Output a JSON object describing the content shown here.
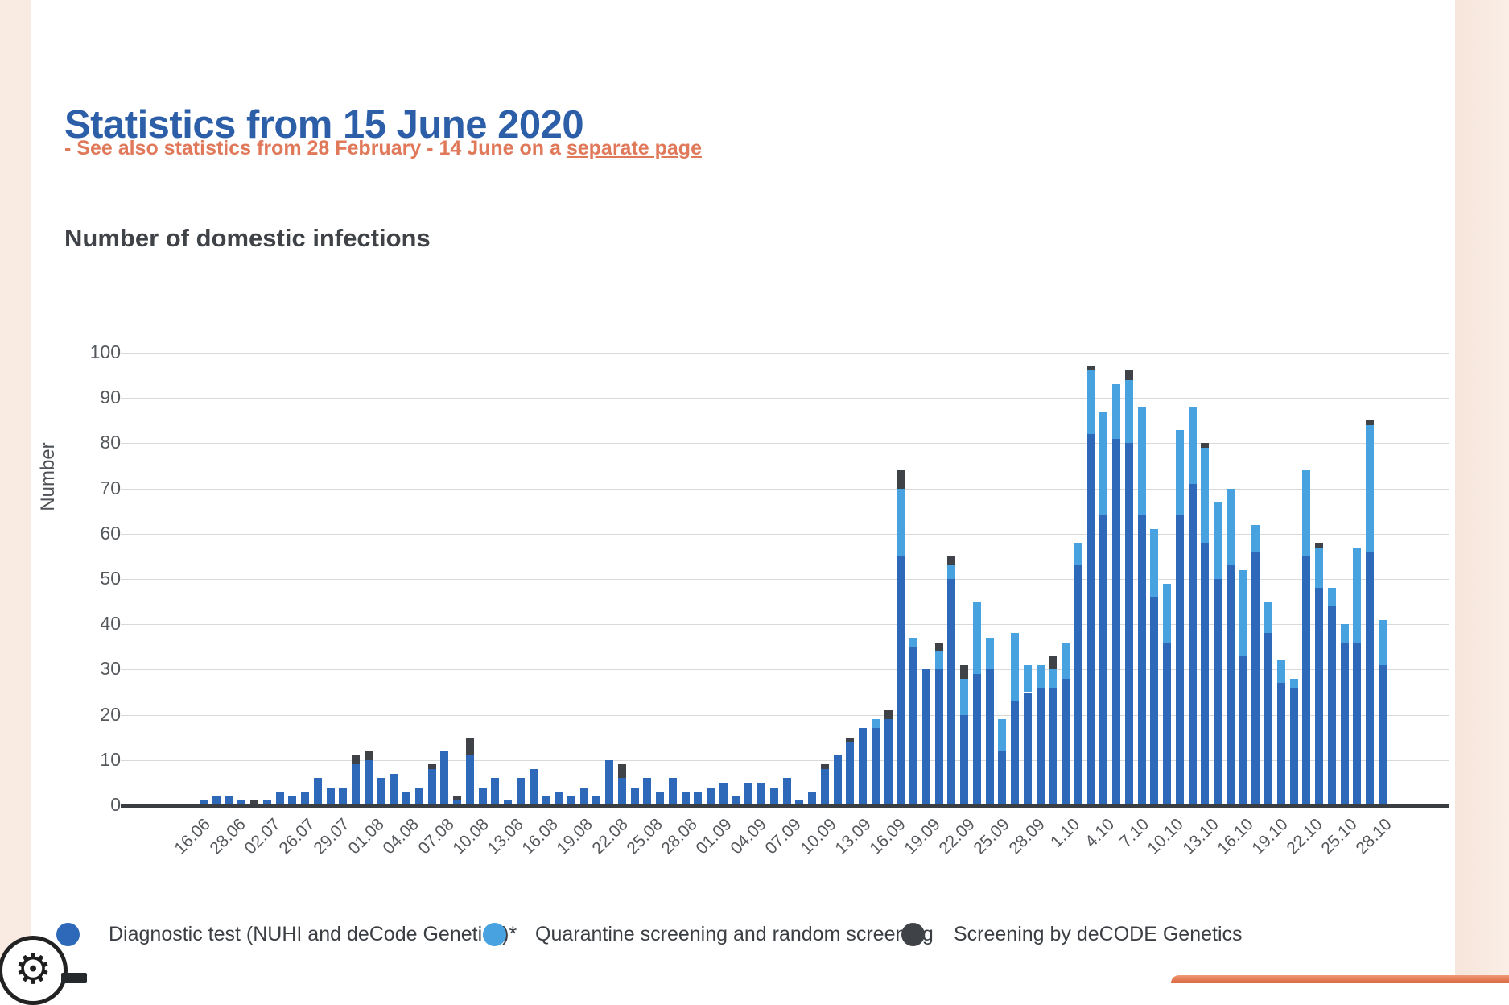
{
  "header": {
    "title": "Statistics from 15 June 2020",
    "subtitle_prefix": "- See also statistics from 28 February - 14 June on a ",
    "subtitle_link": "separate page"
  },
  "chart_data": {
    "type": "bar",
    "stacked": true,
    "title": "Number of domestic infections",
    "xlabel": "",
    "ylabel": "Number",
    "ylim": [
      0,
      100
    ],
    "ytick_interval": 10,
    "grid": true,
    "legend_position": "bottom",
    "x_tick_labels": [
      "16.06",
      "28.06",
      "02.07",
      "26.07",
      "29.07",
      "01.08",
      "04.08",
      "07.08",
      "10.08",
      "13.08",
      "16.08",
      "19.08",
      "22.08",
      "25.08",
      "28.08",
      "01.09",
      "04.09",
      "07.09",
      "10.09",
      "13.09",
      "16.09",
      "19.09",
      "22.09",
      "25.09",
      "28.09",
      "1.10",
      "4.10",
      "7.10",
      "10.10",
      "13.10",
      "16.10",
      "19.10",
      "22.10",
      "25.10",
      "28.10"
    ],
    "series": [
      {
        "name": "Diagnostic test (NUHI and deCode Genetics)*",
        "color": "#2e68b8",
        "values": [
          1,
          2,
          2,
          1,
          0,
          1,
          3,
          2,
          3,
          6,
          4,
          4,
          9,
          10,
          6,
          7,
          3,
          4,
          8,
          12,
          1,
          11,
          4,
          6,
          1,
          6,
          8,
          2,
          3,
          2,
          4,
          2,
          10,
          6,
          4,
          6,
          3,
          6,
          3,
          3,
          4,
          5,
          2,
          5,
          5,
          4,
          6,
          1,
          3,
          8,
          11,
          14,
          17,
          17,
          19,
          55,
          35,
          30,
          30,
          50,
          20,
          29,
          30,
          12,
          23,
          25,
          26,
          26,
          28,
          53,
          82,
          64,
          81,
          80,
          64,
          46,
          36,
          64,
          71,
          58,
          50,
          53,
          33,
          56,
          38,
          27,
          26,
          55,
          48,
          44,
          36,
          36,
          56,
          31
        ]
      },
      {
        "name": "Quarantine screening and random screening",
        "color": "#49a2e0",
        "values": [
          0,
          0,
          0,
          0,
          0,
          0,
          0,
          0,
          0,
          0,
          0,
          0,
          0,
          0,
          0,
          0,
          0,
          0,
          0,
          0,
          0,
          0,
          0,
          0,
          0,
          0,
          0,
          0,
          0,
          0,
          0,
          0,
          0,
          0,
          0,
          0,
          0,
          0,
          0,
          0,
          0,
          0,
          0,
          0,
          0,
          0,
          0,
          0,
          0,
          0,
          0,
          0,
          0,
          2,
          0,
          15,
          2,
          0,
          4,
          3,
          8,
          16,
          7,
          7,
          15,
          6,
          5,
          4,
          8,
          5,
          14,
          23,
          12,
          14,
          24,
          15,
          13,
          19,
          17,
          21,
          17,
          17,
          19,
          6,
          7,
          5,
          2,
          19,
          9,
          4,
          4,
          21,
          28,
          10
        ]
      },
      {
        "name": "Screening by deCODE Genetics",
        "color": "#3f4347",
        "values": [
          0,
          0,
          0,
          0,
          1,
          0,
          0,
          0,
          0,
          0,
          0,
          0,
          2,
          2,
          0,
          0,
          0,
          0,
          1,
          0,
          1,
          4,
          0,
          0,
          0,
          0,
          0,
          0,
          0,
          0,
          0,
          0,
          0,
          3,
          0,
          0,
          0,
          0,
          0,
          0,
          0,
          0,
          0,
          0,
          0,
          0,
          0,
          0,
          0,
          1,
          0,
          1,
          0,
          0,
          2,
          4,
          0,
          0,
          2,
          2,
          3,
          0,
          0,
          0,
          0,
          0,
          0,
          3,
          0,
          0,
          1,
          0,
          0,
          2,
          0,
          0,
          0,
          0,
          0,
          1,
          0,
          0,
          0,
          0,
          0,
          0,
          0,
          0,
          1,
          0,
          0,
          0,
          1,
          0
        ]
      }
    ],
    "y_tick_labels": [
      "0",
      "10",
      "20",
      "30",
      "40",
      "50",
      "60",
      "70",
      "80",
      "90",
      "100"
    ]
  },
  "footer": {
    "settings_icon": "gear-icon",
    "cookie_banner": "cookie-banner-edge"
  },
  "colors": {
    "title_blue": "#2d5fa8",
    "subtitle_orange": "#e0785a",
    "page_margin": "#f9ebe2",
    "axis": "#3a3e42",
    "gridline": "#d9d9d9"
  }
}
